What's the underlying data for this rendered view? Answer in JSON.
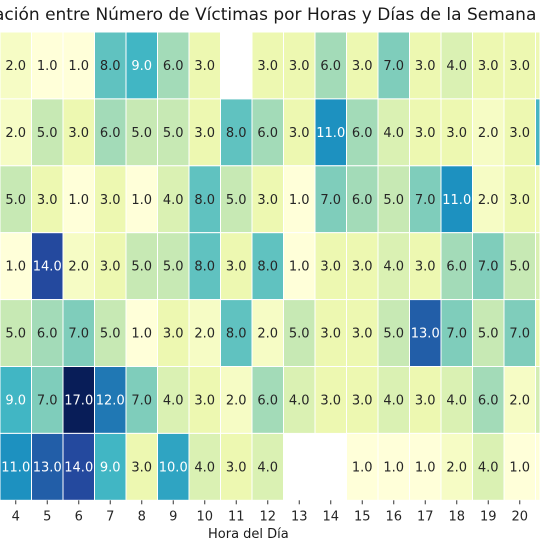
{
  "chart_data": {
    "type": "heatmap",
    "title": "ación entre Número de Víctimas por Horas y Días de la Semana",
    "xlabel": "Hora del Día",
    "x": [
      "4",
      "5",
      "6",
      "7",
      "8",
      "9",
      "10",
      "11",
      "12",
      "13",
      "14",
      "15",
      "16",
      "17",
      "18",
      "19",
      "20"
    ],
    "values": [
      [
        2.0,
        1.0,
        1.0,
        8.0,
        9.0,
        6.0,
        3.0,
        null,
        3.0,
        3.0,
        6.0,
        3.0,
        7.0,
        3.0,
        4.0,
        3.0,
        3.0
      ],
      [
        2.0,
        5.0,
        3.0,
        6.0,
        5.0,
        5.0,
        3.0,
        8.0,
        6.0,
        3.0,
        11.0,
        6.0,
        4.0,
        3.0,
        3.0,
        2.0,
        3.0
      ],
      [
        5.0,
        3.0,
        1.0,
        3.0,
        1.0,
        4.0,
        8.0,
        5.0,
        3.0,
        1.0,
        7.0,
        6.0,
        5.0,
        7.0,
        11.0,
        2.0,
        3.0
      ],
      [
        1.0,
        14.0,
        2.0,
        3.0,
        5.0,
        5.0,
        8.0,
        3.0,
        8.0,
        1.0,
        3.0,
        3.0,
        4.0,
        3.0,
        6.0,
        7.0,
        5.0
      ],
      [
        5.0,
        6.0,
        7.0,
        5.0,
        1.0,
        3.0,
        2.0,
        8.0,
        2.0,
        5.0,
        3.0,
        3.0,
        5.0,
        13.0,
        7.0,
        5.0,
        7.0
      ],
      [
        9.0,
        7.0,
        17.0,
        12.0,
        7.0,
        4.0,
        3.0,
        2.0,
        6.0,
        4.0,
        3.0,
        3.0,
        4.0,
        3.0,
        4.0,
        6.0,
        2.0
      ],
      [
        11.0,
        13.0,
        14.0,
        9.0,
        3.0,
        10.0,
        4.0,
        3.0,
        4.0,
        null,
        null,
        1.0,
        1.0,
        1.0,
        2.0,
        4.0,
        1.0
      ]
    ],
    "right_edge_colors": [
      "#eef8b3",
      "#44b5c4",
      "#f0f9b6",
      "#d9f0b2",
      "#edf8b1",
      "#d4eeb3",
      "#ffffd9"
    ],
    "colormap": "YlGnBu",
    "vmin": 1,
    "vmax": 17
  }
}
